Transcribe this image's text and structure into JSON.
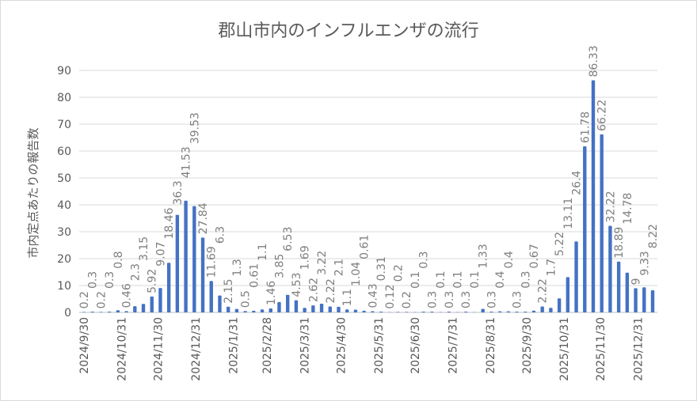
{
  "chart_data": {
    "type": "bar",
    "title": "郡山市内のインフルエンザの流行",
    "ylabel": "市内定点あたりの報告数",
    "xlabel": "",
    "ylim": [
      0,
      90
    ],
    "yticks": [
      0,
      10,
      20,
      30,
      40,
      50,
      60,
      70,
      80,
      90
    ],
    "grid": true,
    "start_date": "2024-09-30",
    "interval_days": 7,
    "x_tick_labels": [
      "2024/9/30",
      "2024/10/31",
      "2024/11/30",
      "2024/12/31",
      "2025/1/31",
      "2025/2/28",
      "2025/3/31",
      "2025/4/30",
      "2025/5/31",
      "2025/6/30",
      "2025/7/31",
      "2025/8/31",
      "2025/9/30",
      "2025/10/31",
      "2025/11/30",
      "2025/12/31"
    ],
    "values": [
      0.2,
      0.3,
      0.2,
      0.3,
      0.8,
      0.46,
      2.3,
      3.15,
      5.92,
      9.07,
      18.46,
      36.3,
      41.53,
      39.53,
      27.84,
      11.69,
      6.3,
      2.15,
      1.3,
      0.5,
      0.61,
      1.1,
      1.46,
      3.85,
      6.53,
      4.53,
      1.69,
      2.62,
      3.22,
      2.22,
      2.1,
      1.1,
      1.04,
      0.61,
      0.43,
      0.31,
      0.12,
      0.2,
      0.2,
      0.1,
      0.3,
      0.3,
      0.1,
      0.3,
      0.1,
      0.3,
      0.1,
      1.33,
      0.3,
      0.4,
      0.4,
      0.3,
      0.3,
      0.67,
      2.22,
      1.7,
      5.22,
      13.11,
      26.4,
      61.78,
      86.33,
      66.22,
      32.22,
      18.89,
      14.78,
      9,
      9.33,
      8.22
    ],
    "bar_color": "#4472c4",
    "grid_color": "#d9d9d9"
  }
}
